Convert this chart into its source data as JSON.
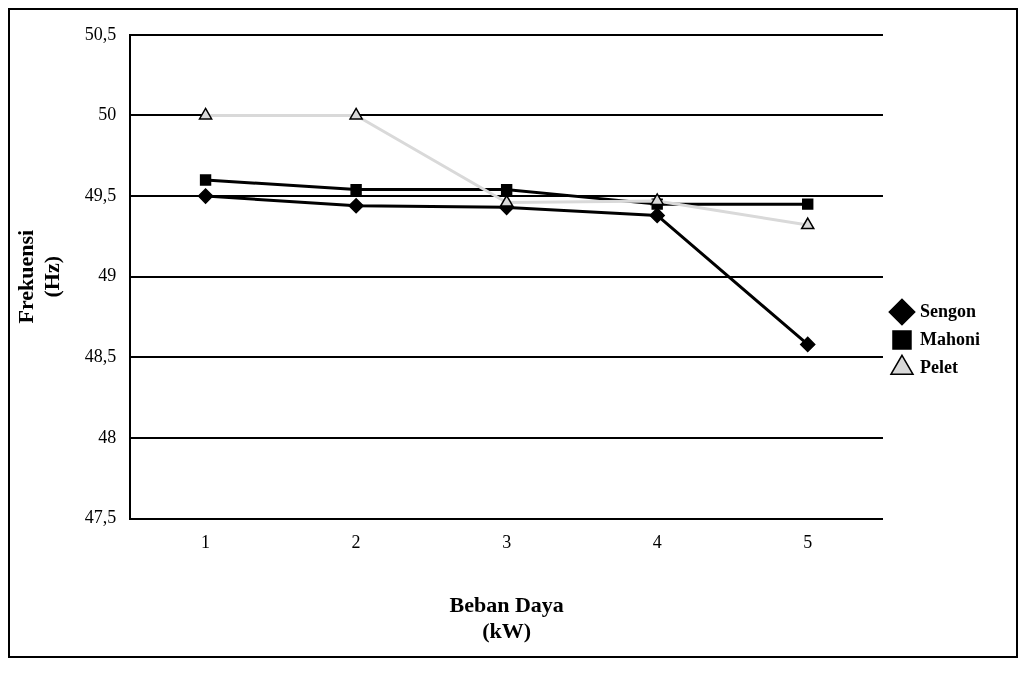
{
  "chart_data": {
    "type": "line",
    "xlabel": "Beban Daya\n(kW)",
    "ylabel": "Frekuensi\n(Hz)",
    "categories": [
      "1",
      "2",
      "3",
      "4",
      "5"
    ],
    "series": [
      {
        "name": "Sengon",
        "color": "#000000",
        "marker": "diamond",
        "values": [
          49.5,
          49.44,
          49.43,
          49.38,
          48.58
        ]
      },
      {
        "name": "Mahoni",
        "color": "#000000",
        "marker": "square",
        "values": [
          49.6,
          49.54,
          49.54,
          49.45,
          49.45
        ]
      },
      {
        "name": "Pelet",
        "color": "#d9d9d9",
        "marker": "triangle",
        "values": [
          50,
          50,
          49.46,
          49.47,
          49.32
        ]
      }
    ],
    "ylim": [
      47.5,
      50.5
    ],
    "yticks": [
      {
        "value": 47.5,
        "label": "47,5"
      },
      {
        "value": 48,
        "label": "48"
      },
      {
        "value": 48.5,
        "label": "48,5"
      },
      {
        "value": 49,
        "label": "49"
      },
      {
        "value": 49.5,
        "label": "49,5"
      },
      {
        "value": 50,
        "label": "50"
      },
      {
        "value": 50.5,
        "label": "50,5"
      }
    ],
    "grid": "y",
    "legend": "right"
  }
}
